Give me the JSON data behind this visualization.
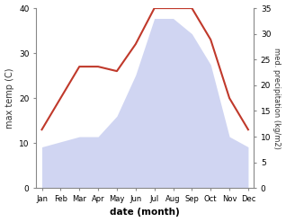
{
  "months": [
    "Jan",
    "Feb",
    "Mar",
    "Apr",
    "May",
    "Jun",
    "Jul",
    "Aug",
    "Sep",
    "Oct",
    "Nov",
    "Dec"
  ],
  "month_indices": [
    0,
    1,
    2,
    3,
    4,
    5,
    6,
    7,
    8,
    9,
    10,
    11
  ],
  "temp_max": [
    13,
    20,
    27,
    27,
    26,
    32,
    40,
    40,
    40,
    33,
    20,
    13
  ],
  "precip_right": [
    8,
    9,
    10,
    10,
    14,
    22,
    33,
    33,
    30,
    24,
    10,
    8
  ],
  "temp_color": "#c0392b",
  "precip_color": "#aab4e8",
  "left_ylim": [
    0,
    40
  ],
  "right_ylim": [
    0,
    35
  ],
  "left_yticks": [
    0,
    10,
    20,
    30,
    40
  ],
  "right_yticks": [
    0,
    5,
    10,
    15,
    20,
    25,
    30,
    35
  ],
  "xlabel": "date (month)",
  "ylabel_left": "max temp (C)",
  "ylabel_right": "med. precipitation (kg/m2)",
  "bg_color": "#ffffff",
  "temp_linewidth": 1.5,
  "precip_alpha": 0.55
}
